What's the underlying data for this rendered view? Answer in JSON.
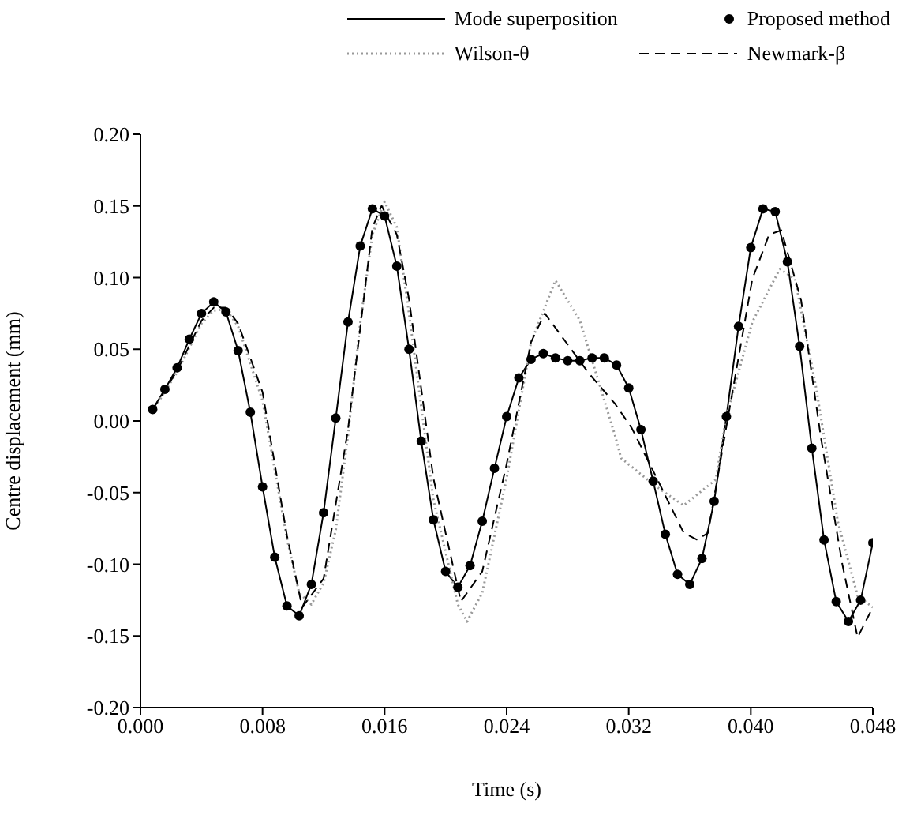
{
  "chart_data": {
    "type": "line",
    "xlabel": "Time (s)",
    "ylabel": "Centre displacement (mm)",
    "xlim": [
      0,
      0.048
    ],
    "ylim": [
      -0.2,
      0.2
    ],
    "xticks": [
      {
        "value": 0,
        "label": "0.000"
      },
      {
        "value": 0.008,
        "label": "0.008"
      },
      {
        "value": 0.016,
        "label": "0.016"
      },
      {
        "value": 0.024,
        "label": "0.024"
      },
      {
        "value": 0.032,
        "label": "0.032"
      },
      {
        "value": 0.04,
        "label": "0.040"
      },
      {
        "value": 0.048,
        "label": "0.048"
      }
    ],
    "yticks": [
      {
        "value": -0.2,
        "label": "-0.20"
      },
      {
        "value": -0.15,
        "label": "-0.15"
      },
      {
        "value": -0.1,
        "label": "-0.10"
      },
      {
        "value": -0.05,
        "label": "-0.05"
      },
      {
        "value": 0,
        "label": "0.00"
      },
      {
        "value": 0.05,
        "label": "0.05"
      },
      {
        "value": 0.1,
        "label": "0.10"
      },
      {
        "value": 0.15,
        "label": "0.15"
      },
      {
        "value": 0.2,
        "label": "0.20"
      }
    ],
    "grid": false,
    "legend": "top right",
    "series": [
      {
        "name": "Mode superposition",
        "color": "#000000",
        "line_style": "solid",
        "marker": "none",
        "x": [
          0.0008,
          0.0016,
          0.0024,
          0.0032,
          0.004,
          0.0048,
          0.0056,
          0.0064,
          0.0072,
          0.008,
          0.0088,
          0.0096,
          0.0104,
          0.0112,
          0.012,
          0.0128,
          0.0136,
          0.0144,
          0.0152,
          0.016,
          0.0168,
          0.0176,
          0.0184,
          0.0192,
          0.02,
          0.0208,
          0.0216,
          0.0224,
          0.0232,
          0.024,
          0.0248,
          0.0256,
          0.0264,
          0.0272,
          0.028,
          0.0288,
          0.0296,
          0.0304,
          0.0312,
          0.032,
          0.0328,
          0.0336,
          0.0344,
          0.0352,
          0.036,
          0.0368,
          0.0376,
          0.0384,
          0.0392,
          0.04,
          0.0408,
          0.0416,
          0.0424,
          0.0432,
          0.044,
          0.0448,
          0.0456,
          0.0464,
          0.0472,
          0.048
        ],
        "values": [
          0.008,
          0.022,
          0.037,
          0.057,
          0.075,
          0.083,
          0.076,
          0.049,
          0.006,
          -0.046,
          -0.095,
          -0.129,
          -0.136,
          -0.114,
          -0.064,
          0.002,
          0.069,
          0.122,
          0.148,
          0.143,
          0.108,
          0.05,
          -0.014,
          -0.069,
          -0.105,
          -0.116,
          -0.101,
          -0.07,
          -0.033,
          0.003,
          0.03,
          0.043,
          0.047,
          0.044,
          0.042,
          0.042,
          0.044,
          0.044,
          0.039,
          0.023,
          -0.006,
          -0.042,
          -0.079,
          -0.107,
          -0.114,
          -0.096,
          -0.056,
          0.003,
          0.066,
          0.121,
          0.148,
          0.146,
          0.111,
          0.052,
          -0.019,
          -0.083,
          -0.126,
          -0.14,
          -0.125,
          -0.085
        ]
      },
      {
        "name": "Proposed method",
        "type": "scatter",
        "color": "#000000",
        "marker": "circle",
        "x": [
          0.0008,
          0.0016,
          0.0024,
          0.0032,
          0.004,
          0.0048,
          0.0056,
          0.0064,
          0.0072,
          0.008,
          0.0088,
          0.0096,
          0.0104,
          0.0112,
          0.012,
          0.0128,
          0.0136,
          0.0144,
          0.0152,
          0.016,
          0.0168,
          0.0176,
          0.0184,
          0.0192,
          0.02,
          0.0208,
          0.0216,
          0.0224,
          0.0232,
          0.024,
          0.0248,
          0.0256,
          0.0264,
          0.0272,
          0.028,
          0.0288,
          0.0296,
          0.0304,
          0.0312,
          0.032,
          0.0328,
          0.0336,
          0.0344,
          0.0352,
          0.036,
          0.0368,
          0.0376,
          0.0384,
          0.0392,
          0.04,
          0.0408,
          0.0416,
          0.0424,
          0.0432,
          0.044,
          0.0448,
          0.0456,
          0.0464,
          0.0472,
          0.048
        ],
        "values": [
          0.008,
          0.022,
          0.037,
          0.057,
          0.075,
          0.083,
          0.076,
          0.049,
          0.006,
          -0.046,
          -0.095,
          -0.129,
          -0.136,
          -0.114,
          -0.064,
          0.002,
          0.069,
          0.122,
          0.148,
          0.143,
          0.108,
          0.05,
          -0.014,
          -0.069,
          -0.105,
          -0.116,
          -0.101,
          -0.07,
          -0.033,
          0.003,
          0.03,
          0.043,
          0.047,
          0.044,
          0.042,
          0.042,
          0.044,
          0.044,
          0.039,
          0.023,
          -0.006,
          -0.042,
          -0.079,
          -0.107,
          -0.114,
          -0.096,
          -0.056,
          0.003,
          0.066,
          0.121,
          0.148,
          0.146,
          0.111,
          0.052,
          -0.019,
          -0.083,
          -0.126,
          -0.14,
          -0.125,
          -0.085
        ]
      },
      {
        "name": "Wilson-θ",
        "color": "#999999",
        "line_style": "dotted",
        "marker": "none",
        "x": [
          0.0008,
          0.0024,
          0.004,
          0.0048,
          0.0056,
          0.0064,
          0.008,
          0.0096,
          0.0104,
          0.0112,
          0.012,
          0.0128,
          0.0136,
          0.0144,
          0.0152,
          0.016,
          0.0168,
          0.0176,
          0.0192,
          0.0208,
          0.0214,
          0.0224,
          0.024,
          0.0256,
          0.0272,
          0.0288,
          0.0311,
          0.0315,
          0.0337,
          0.0356,
          0.0377,
          0.0384,
          0.0401,
          0.0419,
          0.0429,
          0.0443,
          0.0457,
          0.047,
          0.048
        ],
        "values": [
          0.007,
          0.034,
          0.068,
          0.077,
          0.078,
          0.066,
          0.014,
          -0.082,
          -0.12,
          -0.128,
          -0.113,
          -0.076,
          -0.01,
          0.068,
          0.13,
          0.153,
          0.135,
          0.075,
          -0.055,
          -0.128,
          -0.14,
          -0.12,
          -0.04,
          0.055,
          0.098,
          0.07,
          -0.01,
          -0.026,
          -0.045,
          -0.059,
          -0.041,
          0.003,
          0.069,
          0.106,
          0.099,
          0.022,
          -0.07,
          -0.122,
          -0.13
        ]
      },
      {
        "name": "Newmark-β",
        "color": "#000000",
        "line_style": "dashed",
        "marker": "none",
        "x": [
          0.0008,
          0.0024,
          0.004,
          0.0048,
          0.0056,
          0.0064,
          0.008,
          0.0096,
          0.0106,
          0.012,
          0.0136,
          0.0152,
          0.0158,
          0.0168,
          0.0176,
          0.0192,
          0.021,
          0.0224,
          0.024,
          0.0256,
          0.0265,
          0.0294,
          0.0311,
          0.0322,
          0.0337,
          0.0356,
          0.0365,
          0.0372,
          0.0384,
          0.0401,
          0.0412,
          0.042,
          0.0433,
          0.0446,
          0.046,
          0.047,
          0.048
        ],
        "values": [
          0.008,
          0.035,
          0.07,
          0.079,
          0.079,
          0.068,
          0.02,
          -0.08,
          -0.13,
          -0.11,
          -0.006,
          0.135,
          0.15,
          0.13,
          0.085,
          -0.04,
          -0.126,
          -0.105,
          -0.03,
          0.055,
          0.075,
          0.033,
          0.012,
          -0.005,
          -0.037,
          -0.078,
          -0.083,
          -0.078,
          -0.004,
          0.099,
          0.13,
          0.133,
          0.084,
          -0.012,
          -0.1,
          -0.151,
          -0.13
        ]
      }
    ]
  }
}
